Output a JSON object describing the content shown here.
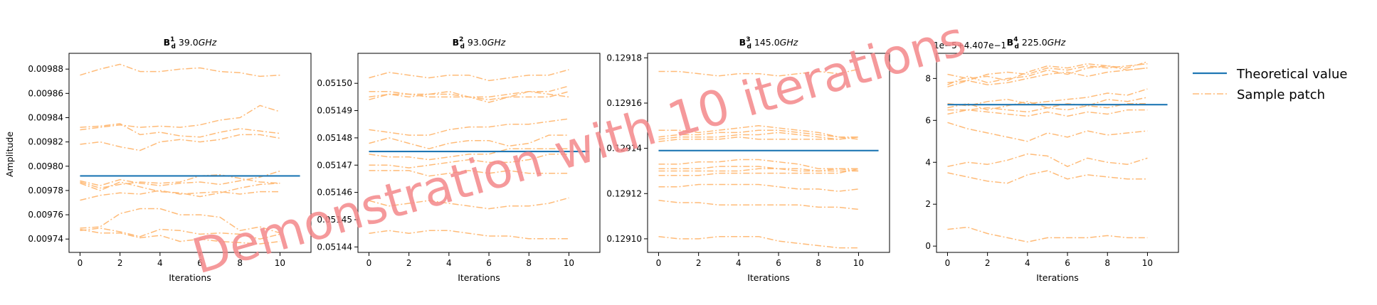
{
  "figure": {
    "ylabel": "Amplitude",
    "legend": {
      "placement": "right",
      "entries": [
        {
          "label": "Theoretical value",
          "color": "#1f77b4",
          "style": "solid"
        },
        {
          "label": "Sample patch",
          "color": "#ffbb78",
          "style": "dashdot"
        }
      ]
    },
    "watermark": "Demonstration with 10 iterations"
  },
  "chart_data": [
    {
      "type": "line",
      "title_main": "B",
      "title_sub": "d",
      "title_sup": "1",
      "title_freq": " 39.0",
      "title_unit": "GHz",
      "xlabel": "Iterations",
      "ylabel": "Amplitude",
      "offset_text": "",
      "xlim": [
        -0.55,
        11.55
      ],
      "ylim": [
        0.009729,
        0.009893
      ],
      "xticks": [
        0,
        2,
        4,
        6,
        8,
        10
      ],
      "yticks": [
        0.00974,
        0.00976,
        0.00978,
        0.0098,
        0.00982,
        0.00984,
        0.00986,
        0.00988
      ],
      "ytick_labels": [
        "0.00974",
        "0.00976",
        "0.00978",
        "0.00980",
        "0.00982",
        "0.00984",
        "0.00986",
        "0.00988"
      ],
      "theoretical": {
        "x": [
          0,
          11
        ],
        "y": [
          0.009792,
          0.009792
        ]
      },
      "samples": [
        [
          0.009875,
          0.00988,
          0.009884,
          0.009878,
          0.009878,
          0.00988,
          0.009881,
          0.009878,
          0.009877,
          0.009874,
          0.009875
        ],
        [
          0.00983,
          0.009832,
          0.009834,
          0.009832,
          0.009833,
          0.009832,
          0.009834,
          0.009838,
          0.00984,
          0.00985,
          0.009845
        ],
        [
          0.009832,
          0.009833,
          0.009835,
          0.009826,
          0.009828,
          0.009825,
          0.009824,
          0.009828,
          0.009831,
          0.009829,
          0.009827
        ],
        [
          0.009818,
          0.00982,
          0.009816,
          0.009813,
          0.00982,
          0.009822,
          0.00982,
          0.009822,
          0.009826,
          0.009826,
          0.009823
        ],
        [
          0.009788,
          0.009784,
          0.009789,
          0.009786,
          0.009784,
          0.009786,
          0.009787,
          0.009785,
          0.009788,
          0.009791,
          0.009796
        ],
        [
          0.009787,
          0.009782,
          0.009785,
          0.009787,
          0.009786,
          0.009787,
          0.009792,
          0.009793,
          0.00979,
          0.009787,
          0.009786
        ],
        [
          0.009786,
          0.00978,
          0.009787,
          0.009783,
          0.009779,
          0.009778,
          0.009775,
          0.009778,
          0.009782,
          0.009785,
          0.009786
        ],
        [
          0.009772,
          0.009776,
          0.009778,
          0.009777,
          0.00978,
          0.009777,
          0.009778,
          0.009779,
          0.009777,
          0.009779,
          0.009779
        ],
        [
          0.009749,
          0.00975,
          0.009761,
          0.009765,
          0.009765,
          0.00976,
          0.00976,
          0.009758,
          0.009747,
          0.00975,
          0.009745
        ],
        [
          0.009747,
          0.009749,
          0.009746,
          0.009742,
          0.009748,
          0.009747,
          0.009744,
          0.009745,
          0.009744,
          0.00974,
          0.009744
        ],
        [
          0.009748,
          0.009745,
          0.009745,
          0.009741,
          0.009743,
          0.009738,
          0.00974,
          0.009738,
          0.009737,
          0.009736,
          0.009738
        ]
      ]
    },
    {
      "type": "line",
      "title_main": "B",
      "title_sub": "d",
      "title_sup": "2",
      "title_freq": " 93.0",
      "title_unit": "GHz",
      "xlabel": "Iterations",
      "ylabel": "",
      "offset_text": "",
      "xlim": [
        -0.55,
        11.55
      ],
      "ylim": [
        0.051438,
        0.051511
      ],
      "xticks": [
        0,
        2,
        4,
        6,
        8,
        10
      ],
      "yticks": [
        0.05144,
        0.05145,
        0.05146,
        0.05147,
        0.05148,
        0.05149,
        0.0515
      ],
      "ytick_labels": [
        "0.05144",
        "0.05145",
        "0.05146",
        "0.05147",
        "0.05148",
        "0.05149",
        "0.05150"
      ],
      "theoretical": {
        "x": [
          0,
          11
        ],
        "y": [
          0.051475,
          0.051475
        ]
      },
      "samples": [
        [
          0.051502,
          0.051504,
          0.051503,
          0.051502,
          0.051503,
          0.051503,
          0.051501,
          0.051502,
          0.051503,
          0.051503,
          0.051505
        ],
        [
          0.051497,
          0.051497,
          0.051496,
          0.051496,
          0.051497,
          0.051495,
          0.051495,
          0.051496,
          0.051497,
          0.051497,
          0.051499
        ],
        [
          0.051495,
          0.051496,
          0.051496,
          0.051495,
          0.051495,
          0.051495,
          0.051494,
          0.051495,
          0.051495,
          0.051495,
          0.051497
        ],
        [
          0.051494,
          0.051496,
          0.051495,
          0.051496,
          0.051496,
          0.051495,
          0.051493,
          0.051495,
          0.051497,
          0.051496,
          0.051495
        ],
        [
          0.051483,
          0.051482,
          0.051481,
          0.051481,
          0.051483,
          0.051484,
          0.051484,
          0.051485,
          0.051485,
          0.051486,
          0.051487
        ],
        [
          0.051478,
          0.05148,
          0.051478,
          0.051476,
          0.051478,
          0.051479,
          0.051479,
          0.051477,
          0.051478,
          0.051481,
          0.051481
        ],
        [
          0.051474,
          0.051473,
          0.051473,
          0.051472,
          0.051473,
          0.051474,
          0.051474,
          0.051476,
          0.051476,
          0.051476,
          0.051476
        ],
        [
          0.05147,
          0.05147,
          0.051469,
          0.05147,
          0.051471,
          0.051472,
          0.051471,
          0.051471,
          0.051472,
          0.051474,
          0.051474
        ],
        [
          0.051468,
          0.051468,
          0.051468,
          0.051466,
          0.051467,
          0.051468,
          0.051467,
          0.051468,
          0.051467,
          0.051467,
          0.051467
        ],
        [
          0.051457,
          0.051455,
          0.051456,
          0.051457,
          0.051456,
          0.051455,
          0.051454,
          0.051455,
          0.051455,
          0.051456,
          0.051458
        ],
        [
          0.051445,
          0.051446,
          0.051445,
          0.051446,
          0.051446,
          0.051445,
          0.051444,
          0.051444,
          0.051443,
          0.051443,
          0.051443
        ]
      ]
    },
    {
      "type": "line",
      "title_main": "B",
      "title_sub": "d",
      "title_sup": "3",
      "title_freq": " 145.0",
      "title_unit": "GHz",
      "xlabel": "Iterations",
      "ylabel": "",
      "offset_text": "",
      "xlim": [
        -0.55,
        11.55
      ],
      "ylim": [
        0.129094,
        0.129182
      ],
      "xticks": [
        0,
        2,
        4,
        6,
        8,
        10
      ],
      "yticks": [
        0.1291,
        0.12912,
        0.12914,
        0.12916,
        0.12918
      ],
      "ytick_labels": [
        "0.12910",
        "0.12912",
        "0.12914",
        "0.12916",
        "0.12918"
      ],
      "theoretical": {
        "x": [
          0,
          11
        ],
        "y": [
          0.129139,
          0.129139
        ]
      },
      "samples": [
        [
          0.129174,
          0.129174,
          0.129173,
          0.129172,
          0.129173,
          0.129173,
          0.129172,
          0.129173,
          0.129174,
          0.129173,
          0.129175
        ],
        [
          0.129148,
          0.129148,
          0.129147,
          0.129148,
          0.129149,
          0.12915,
          0.129149,
          0.129148,
          0.129147,
          0.129145,
          0.129145
        ],
        [
          0.129145,
          0.129146,
          0.129146,
          0.129147,
          0.129147,
          0.129148,
          0.129148,
          0.129147,
          0.129146,
          0.129145,
          0.129144
        ],
        [
          0.129144,
          0.129145,
          0.129145,
          0.129145,
          0.129146,
          0.129146,
          0.129147,
          0.129146,
          0.129145,
          0.129144,
          0.129145
        ],
        [
          0.129143,
          0.129144,
          0.129144,
          0.129144,
          0.129145,
          0.129144,
          0.129144,
          0.129144,
          0.129144,
          0.129144,
          0.129145
        ],
        [
          0.129133,
          0.129133,
          0.129134,
          0.129134,
          0.129135,
          0.129135,
          0.129134,
          0.129133,
          0.129131,
          0.129131,
          0.129131
        ],
        [
          0.129131,
          0.129131,
          0.129131,
          0.129132,
          0.129132,
          0.129132,
          0.129131,
          0.12913,
          0.12913,
          0.129131,
          0.12913
        ],
        [
          0.12913,
          0.12913,
          0.12913,
          0.12913,
          0.12913,
          0.129131,
          0.129131,
          0.129131,
          0.12913,
          0.12913,
          0.12913
        ],
        [
          0.129128,
          0.129128,
          0.129128,
          0.129129,
          0.129129,
          0.129129,
          0.129129,
          0.129129,
          0.129129,
          0.129129,
          0.129131
        ],
        [
          0.129123,
          0.129123,
          0.129124,
          0.129124,
          0.129124,
          0.129124,
          0.129123,
          0.129122,
          0.129122,
          0.129121,
          0.129122
        ],
        [
          0.129117,
          0.129116,
          0.129116,
          0.129115,
          0.129115,
          0.129115,
          0.129115,
          0.129115,
          0.129114,
          0.129114,
          0.129113
        ],
        [
          0.129101,
          0.1291,
          0.1291,
          0.129101,
          0.129101,
          0.129101,
          0.129099,
          0.129098,
          0.129097,
          0.129096,
          0.129096
        ]
      ]
    },
    {
      "type": "line",
      "title_main": "B",
      "title_sub": "d",
      "title_sup": "4",
      "title_freq": " 225.0",
      "title_unit": "GHz",
      "xlabel": "Iterations",
      "ylabel": "",
      "offset_text": "1e−5+4.407e−1",
      "xlim": [
        -0.55,
        11.55
      ],
      "ylim": [
        -0.3,
        9.2
      ],
      "xticks": [
        0,
        2,
        4,
        6,
        8,
        10
      ],
      "yticks": [
        0,
        2,
        4,
        6,
        8
      ],
      "ytick_labels": [
        "0",
        "2",
        "4",
        "6",
        "8"
      ],
      "theoretical": {
        "x": [
          0,
          11
        ],
        "y": [
          6.75,
          6.75
        ]
      },
      "samples": [
        [
          8.2,
          8.0,
          8.1,
          7.9,
          8.3,
          8.6,
          8.5,
          8.7,
          8.6,
          8.5,
          8.8
        ],
        [
          7.8,
          7.9,
          8.2,
          8.3,
          8.2,
          8.5,
          8.4,
          8.6,
          8.5,
          8.6,
          8.7
        ],
        [
          7.7,
          8.1,
          7.8,
          8.0,
          8.1,
          8.4,
          8.2,
          8.5,
          8.6,
          8.4,
          8.5
        ],
        [
          7.6,
          7.9,
          7.7,
          7.8,
          8.0,
          8.2,
          8.3,
          8.1,
          8.3,
          8.4,
          8.5
        ],
        [
          6.8,
          6.7,
          6.9,
          7.0,
          6.8,
          6.9,
          7.0,
          7.1,
          7.3,
          7.2,
          7.5
        ],
        [
          6.6,
          6.8,
          6.5,
          6.7,
          6.9,
          6.6,
          6.8,
          6.7,
          7.0,
          6.9,
          7.1
        ],
        [
          6.5,
          6.5,
          6.6,
          6.5,
          6.4,
          6.6,
          6.5,
          6.7,
          6.6,
          6.8,
          6.8
        ],
        [
          6.3,
          6.5,
          6.4,
          6.3,
          6.2,
          6.4,
          6.2,
          6.4,
          6.3,
          6.5,
          6.5
        ],
        [
          5.9,
          5.6,
          5.4,
          5.2,
          5.0,
          5.4,
          5.2,
          5.5,
          5.3,
          5.4,
          5.5
        ],
        [
          3.8,
          4.0,
          3.9,
          4.1,
          4.4,
          4.3,
          3.8,
          4.2,
          4.0,
          3.9,
          4.2
        ],
        [
          3.5,
          3.3,
          3.1,
          3.0,
          3.4,
          3.6,
          3.2,
          3.4,
          3.3,
          3.2,
          3.2
        ],
        [
          0.8,
          0.9,
          0.6,
          0.4,
          0.2,
          0.4,
          0.4,
          0.4,
          0.5,
          0.4,
          0.4
        ]
      ]
    }
  ]
}
